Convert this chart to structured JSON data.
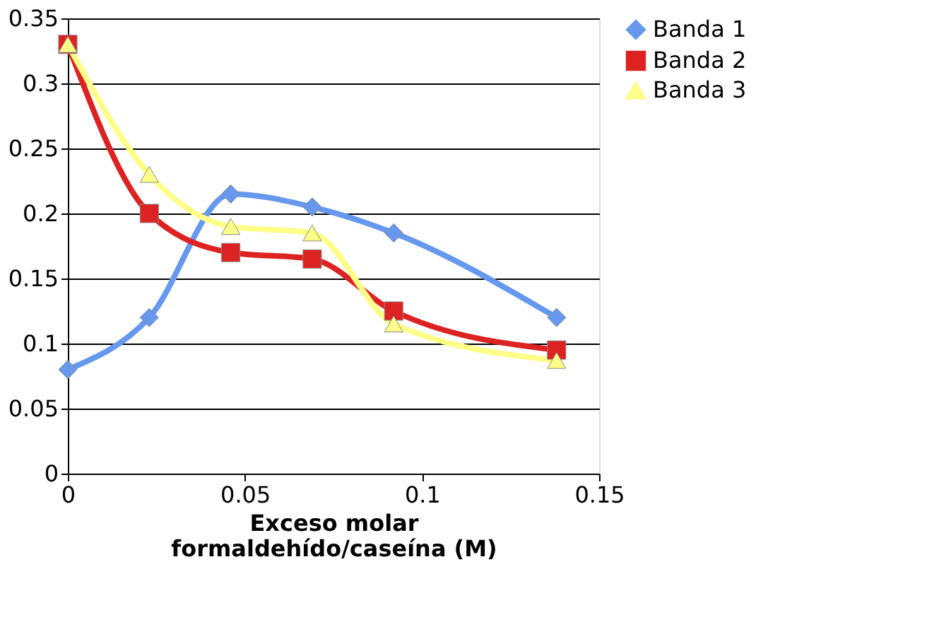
{
  "chart_data": {
    "type": "line",
    "xlabel": "Exceso molar\nformaldehído/caseína (M)",
    "x": [
      0,
      0.023,
      0.046,
      0.069,
      0.092,
      0.138
    ],
    "series": [
      {
        "name": "Banda 1",
        "color": "#6699ee",
        "marker": "diamond",
        "values": [
          0.08,
          0.12,
          0.215,
          0.205,
          0.185,
          0.12
        ]
      },
      {
        "name": "Banda 2",
        "color": "#dd2222",
        "marker": "square",
        "values": [
          0.33,
          0.2,
          0.17,
          0.165,
          0.125,
          0.095
        ]
      },
      {
        "name": "Banda 3",
        "color": "#ffff88",
        "marker": "triangle",
        "values": [
          0.33,
          0.23,
          0.19,
          0.185,
          0.115,
          0.087
        ]
      }
    ],
    "xlim": [
      0,
      0.15
    ],
    "xticks": [
      0,
      0.05,
      0.1,
      0.15
    ],
    "ylim": [
      0,
      0.35
    ],
    "yticks": [
      0,
      0.05,
      0.1,
      0.15,
      0.2,
      0.25,
      0.3,
      0.35
    ],
    "grid": "y",
    "legend": "right"
  }
}
